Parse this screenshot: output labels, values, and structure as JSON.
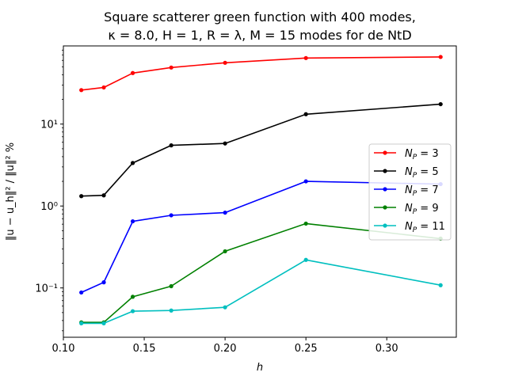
{
  "chart_data": {
    "type": "line",
    "title_line1": "Square scatterer green function with 400 modes,",
    "title_line2": "κ = 8.0, H = 1, R = λ, M = 15 modes for de NtD",
    "xlabel": "h",
    "ylabel": "‖u − u_h‖² / ‖u‖² %",
    "y_scale": "log",
    "xlim": [
      0.1,
      0.343
    ],
    "ylim": [
      0.025,
      90
    ],
    "x_ticks": [
      0.1,
      0.15,
      0.2,
      0.25,
      0.3
    ],
    "x_tick_labels": [
      "0.10",
      "0.15",
      "0.20",
      "0.25",
      "0.30"
    ],
    "y_ticks": [
      0.1,
      1,
      10
    ],
    "y_tick_labels": [
      "10⁻¹",
      "10⁰",
      "10¹"
    ],
    "grid": false,
    "legend_position": "center-right",
    "x": [
      0.1111,
      0.125,
      0.1429,
      0.1667,
      0.2,
      0.25,
      0.3333
    ],
    "series": [
      {
        "name": "N_P = 3",
        "color": "#ff0000",
        "values": [
          26,
          28,
          42,
          49,
          56,
          64,
          66
        ]
      },
      {
        "name": "N_P = 5",
        "color": "#000000",
        "values": [
          1.32,
          1.35,
          3.35,
          5.5,
          5.8,
          13.2,
          17.5
        ]
      },
      {
        "name": "N_P = 7",
        "color": "#0000ff",
        "values": [
          0.088,
          0.117,
          0.65,
          0.77,
          0.83,
          2.0,
          1.85
        ]
      },
      {
        "name": "N_P = 9",
        "color": "#008000",
        "values": [
          0.038,
          0.038,
          0.078,
          0.105,
          0.28,
          0.61,
          0.4
        ]
      },
      {
        "name": "N_P = 11",
        "color": "#00bfbf",
        "values": [
          0.037,
          0.037,
          0.052,
          0.053,
          0.058,
          0.22,
          0.108
        ]
      }
    ]
  }
}
